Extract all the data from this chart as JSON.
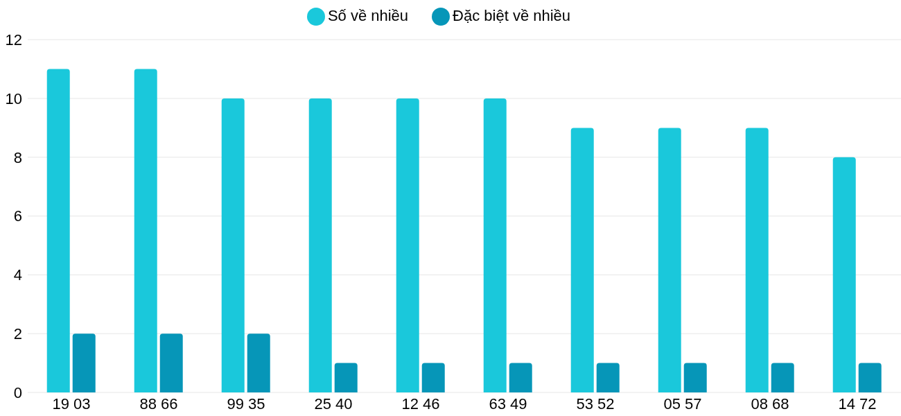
{
  "chart_data": {
    "type": "bar",
    "categories": [
      "19 03",
      "88 66",
      "99 35",
      "25 40",
      "12 46",
      "63 49",
      "53 52",
      "05 57",
      "08 68",
      "14 72"
    ],
    "series": [
      {
        "name": "Số về nhiều",
        "color": "#1ac8db",
        "values": [
          11,
          11,
          10,
          10,
          10,
          10,
          9,
          9,
          9,
          8
        ]
      },
      {
        "name": "Đặc biệt về nhiều",
        "color": "#0696b8",
        "values": [
          2,
          2,
          2,
          1,
          1,
          1,
          1,
          1,
          1,
          1
        ]
      }
    ],
    "ylim": [
      0,
      12
    ],
    "yticks": [
      0,
      2,
      4,
      6,
      8,
      10,
      12
    ],
    "grid": "y",
    "legend": "top"
  }
}
